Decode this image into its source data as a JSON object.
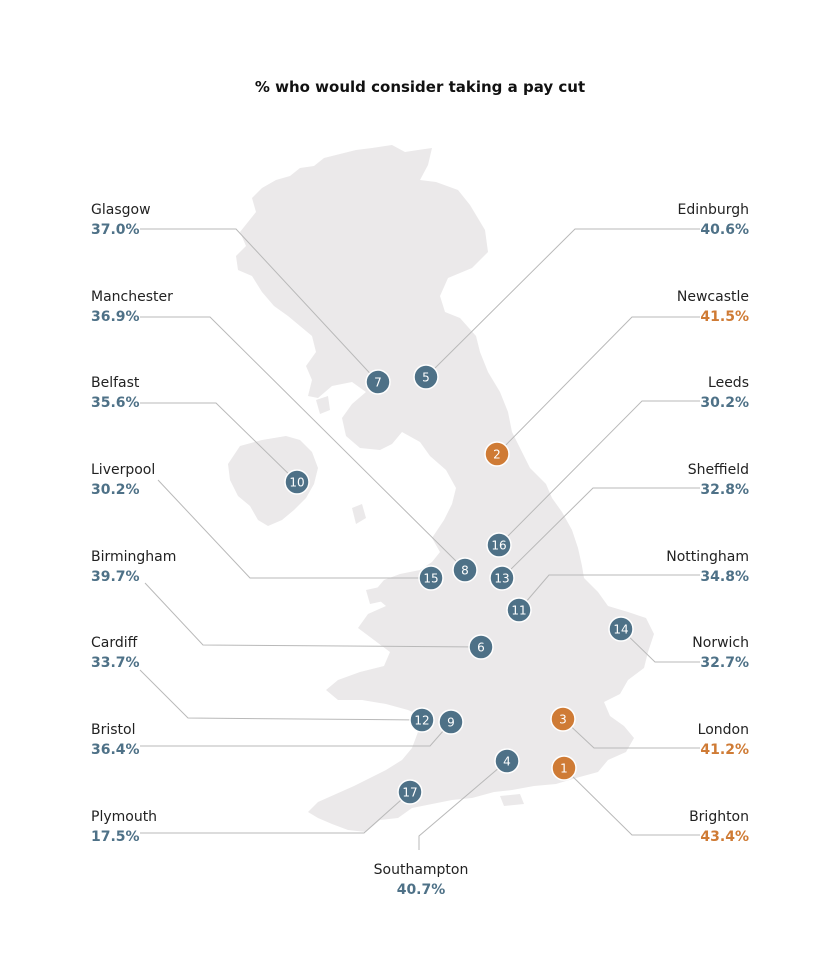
{
  "title": "% who would consider taking a pay cut",
  "colors": {
    "map_fill": "#ebe9ea",
    "marker_normal": "#4e7187",
    "marker_highlight": "#cf7b35",
    "pct_normal": "#4e7187",
    "pct_highlight": "#cf7b35",
    "leader": "#b9b9b9"
  },
  "cities": [
    {
      "name": "Glasgow",
      "pct": "37.0%",
      "rank": "7",
      "highlight": false
    },
    {
      "name": "Manchester",
      "pct": "36.9%",
      "rank": "8",
      "highlight": false
    },
    {
      "name": "Belfast",
      "pct": "35.6%",
      "rank": "10",
      "highlight": false
    },
    {
      "name": "Liverpool",
      "pct": "30.2%",
      "rank": "15",
      "highlight": false
    },
    {
      "name": "Birmingham",
      "pct": "39.7%",
      "rank": "6",
      "highlight": false
    },
    {
      "name": "Cardiff",
      "pct": "33.7%",
      "rank": "12",
      "highlight": false
    },
    {
      "name": "Bristol",
      "pct": "36.4%",
      "rank": "9",
      "highlight": false
    },
    {
      "name": "Plymouth",
      "pct": "17.5%",
      "rank": "17",
      "highlight": false
    },
    {
      "name": "Edinburgh",
      "pct": "40.6%",
      "rank": "5",
      "highlight": false
    },
    {
      "name": "Newcastle",
      "pct": "41.5%",
      "rank": "2",
      "highlight": true
    },
    {
      "name": "Leeds",
      "pct": "30.2%",
      "rank": "16",
      "highlight": false
    },
    {
      "name": "Sheffield",
      "pct": "32.8%",
      "rank": "13",
      "highlight": false
    },
    {
      "name": "Nottingham",
      "pct": "34.8%",
      "rank": "11",
      "highlight": false
    },
    {
      "name": "Norwich",
      "pct": "32.7%",
      "rank": "14",
      "highlight": false
    },
    {
      "name": "London",
      "pct": "41.2%",
      "rank": "3",
      "highlight": true
    },
    {
      "name": "Brighton",
      "pct": "43.4%",
      "rank": "1",
      "highlight": true
    },
    {
      "name": "Southampton",
      "pct": "40.7%",
      "rank": "4",
      "highlight": false
    }
  ]
}
